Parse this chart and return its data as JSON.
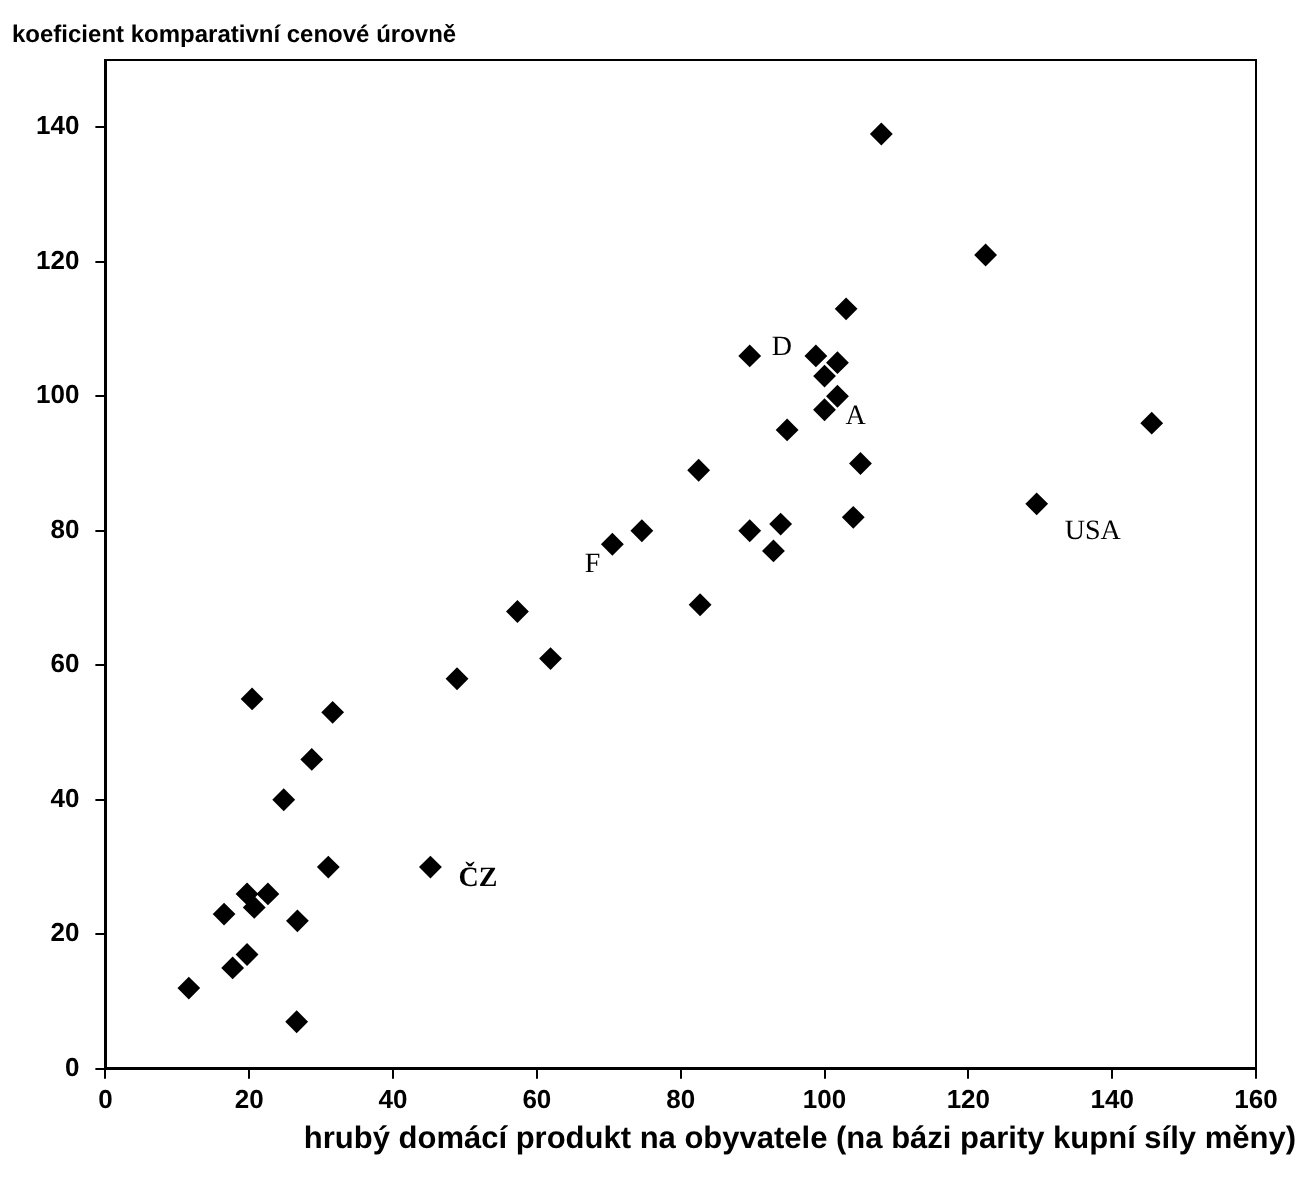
{
  "chart_data": {
    "type": "scatter",
    "ylabel": "koeficient komparativní cenové úrovně",
    "xlabel": "hrubý domácí produkt na obyvatele (na bázi parity kupní síly měny)",
    "xlim": [
      0,
      160
    ],
    "xticks": [
      0,
      20,
      40,
      60,
      80,
      100,
      120,
      140,
      160
    ],
    "ylim": [
      0,
      150
    ],
    "yticks": [
      0,
      20,
      40,
      60,
      80,
      100,
      120,
      140
    ],
    "grid": false,
    "legend": false,
    "marker": "diamond",
    "series": [
      {
        "color": "#000000",
        "x": [
          20.4,
          31.6,
          28.7,
          24.8,
          48.9,
          61.9,
          31,
          45.2,
          19.7,
          22.6,
          20.7,
          16.5,
          26.7,
          19.7,
          17.7,
          11.6,
          26.6,
          57.3,
          70.5,
          74.6,
          82.5,
          82.7,
          89.6,
          107.9,
          122.4,
          103,
          89.6,
          98.8,
          101.8,
          100,
          101.8,
          100,
          94.8,
          105,
          145.5,
          129.5,
          104,
          93.9,
          92.9
        ],
        "values": [
          55,
          53,
          46,
          40,
          58,
          61,
          30,
          30,
          26,
          26,
          24,
          23,
          22,
          17,
          15,
          12,
          7,
          68,
          78,
          80,
          89,
          69,
          80,
          139,
          121,
          113,
          106,
          106,
          105,
          103,
          100,
          98,
          95,
          90,
          96,
          84,
          82,
          81,
          77
        ]
      }
    ],
    "annotations": [
      {
        "text": "D",
        "x": 98.8,
        "y": 106
      },
      {
        "text": "A",
        "x": 101.8,
        "y": 100
      },
      {
        "text": "F",
        "x": 70.5,
        "y": 78
      },
      {
        "text": "USA",
        "x": 129.5,
        "y": 84
      },
      {
        "text": "ČZ",
        "x": 45.2,
        "y": 30
      }
    ]
  }
}
